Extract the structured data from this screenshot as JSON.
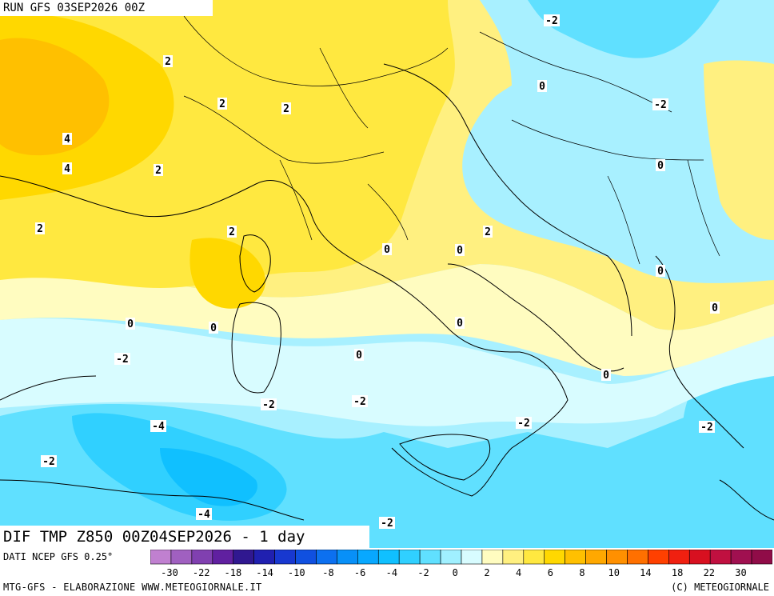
{
  "header": {
    "run_title": "RUN GFS 03SEP2026 00Z"
  },
  "variable_label": "DIF TMP Z850 00Z04SEP2026 - 1 day",
  "footer": {
    "data_source": "DATI NCEP GFS 0.25°",
    "credit_left": "MTG-GFS - ELABORAZIONE WWW.METEOGIORNALE.IT",
    "credit_right": "(C) METEOGIORNALE"
  },
  "colorbar": {
    "colors": [
      "#c080d0",
      "#a060c0",
      "#8040b0",
      "#6020a0",
      "#301890",
      "#2020b0",
      "#1838d0",
      "#1050e0",
      "#0c70f0",
      "#0890f8",
      "#08a8ff",
      "#10c0ff",
      "#30d0ff",
      "#60e0ff",
      "#a0f0ff",
      "#d8fcff",
      "#fffcc0",
      "#fff080",
      "#ffe840",
      "#ffd800",
      "#ffc000",
      "#ffa800",
      "#ff9000",
      "#ff7000",
      "#ff4000",
      "#f02010",
      "#d81020",
      "#c01040",
      "#a01050",
      "#900c48"
    ],
    "tick_labels": [
      "-30",
      "-22",
      "-18",
      "-14",
      "-10",
      "-8",
      "-6",
      "-4",
      "-2",
      "0",
      "2",
      "4",
      "6",
      "8",
      "10",
      "14",
      "18",
      "22",
      "30"
    ]
  },
  "map_labels": [
    {
      "text": "-2",
      "color": "#000"
    },
    {
      "text": "2",
      "color": "#000"
    },
    {
      "text": "2",
      "color": "#000"
    },
    {
      "text": "2",
      "color": "#000"
    },
    {
      "text": "0",
      "color": "#000"
    },
    {
      "text": "-2",
      "color": "#000"
    },
    {
      "text": "4",
      "color": "#000"
    },
    {
      "text": "4",
      "color": "#000"
    },
    {
      "text": "2",
      "color": "#000"
    },
    {
      "text": "0",
      "color": "#000"
    },
    {
      "text": "2",
      "color": "#000"
    },
    {
      "text": "2",
      "color": "#000"
    },
    {
      "text": "0",
      "color": "#000"
    },
    {
      "text": "0",
      "color": "#000"
    },
    {
      "text": "2",
      "color": "#000"
    },
    {
      "text": "0",
      "color": "#000"
    },
    {
      "text": "0",
      "color": "#000"
    },
    {
      "text": "0",
      "color": "#000"
    },
    {
      "text": "0",
      "color": "#000"
    },
    {
      "text": "0",
      "color": "#000"
    },
    {
      "text": "-2",
      "color": "#000"
    },
    {
      "text": "0",
      "color": "#000"
    },
    {
      "text": "0",
      "color": "#000"
    },
    {
      "text": "-2",
      "color": "#000"
    },
    {
      "text": "-2",
      "color": "#000"
    },
    {
      "text": "-4",
      "color": "#000"
    },
    {
      "text": "-2",
      "color": "#000"
    },
    {
      "text": "-2",
      "color": "#000"
    },
    {
      "text": "-2",
      "color": "#000"
    },
    {
      "text": "-4",
      "color": "#000"
    },
    {
      "text": "-2",
      "color": "#000"
    }
  ]
}
